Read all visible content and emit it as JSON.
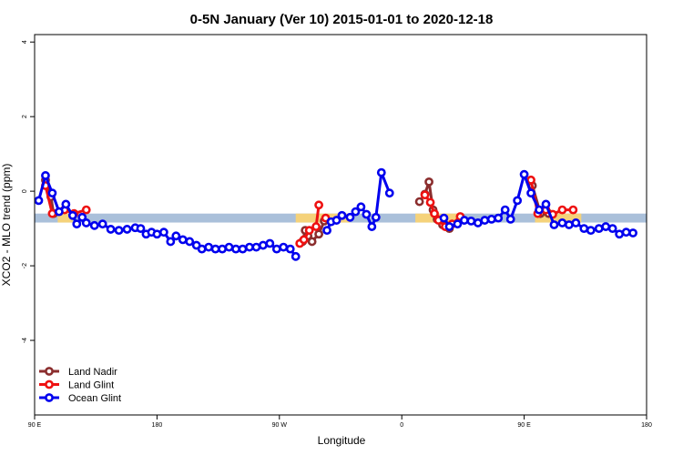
{
  "chart_data": {
    "type": "line",
    "title": "0-5N January (Ver 10)   2015-01-01 to 2020-12-18",
    "xlabel": "Longitude",
    "ylabel": "XCO2 - MLO trend (ppm)",
    "xlim": [
      0,
      450
    ],
    "ylim": [
      -6,
      4.2
    ],
    "x_ticks": [
      {
        "value": 0,
        "label": "90 E"
      },
      {
        "value": 90,
        "label": "180"
      },
      {
        "value": 180,
        "label": "90 W"
      },
      {
        "value": 270,
        "label": "0"
      },
      {
        "value": 360,
        "label": "90 E"
      },
      {
        "value": 450,
        "label": "180"
      }
    ],
    "y_ticks": [
      {
        "value": 4,
        "label": "4"
      },
      {
        "value": 2,
        "label": "2"
      },
      {
        "value": 0,
        "label": "0"
      },
      {
        "value": -2,
        "label": "-2"
      },
      {
        "value": -4,
        "label": "-4"
      }
    ],
    "background_band": {
      "y_center": -0.72,
      "y_half_width": 0.12,
      "base_color": "#aac0da",
      "land_color": "#f5d27a",
      "land_segments": [
        [
          17,
          28
        ],
        [
          192,
          232
        ],
        [
          280,
          315
        ],
        [
          368,
          380
        ],
        [
          380,
          402
        ]
      ]
    },
    "legend": {
      "position": "bottom-left",
      "entries": [
        {
          "name": "Land Nadir",
          "color": "#8b2e2e"
        },
        {
          "name": "Land Glint",
          "color": "#ee1111"
        },
        {
          "name": "Ocean Glint",
          "color": "#0000ee"
        }
      ]
    },
    "series": [
      {
        "name": "Land Nadir",
        "color": "#8b2e2e",
        "segments": [
          [
            [
              8,
              0.3
            ],
            [
              12,
              -0.15
            ],
            [
              14,
              -0.6
            ]
          ],
          [
            [
              197,
              -1.35
            ],
            [
              199,
              -1.05
            ],
            [
              201,
              -1.2
            ],
            [
              204,
              -1.35
            ],
            [
              209,
              -1.15
            ],
            [
              213,
              -0.8
            ]
          ],
          [
            [
              283,
              -0.28
            ],
            [
              287,
              -0.08
            ],
            [
              290,
              0.25
            ],
            [
              293,
              -0.5
            ],
            [
              296,
              -0.75
            ],
            [
              300,
              -0.9
            ],
            [
              305,
              -1.0
            ]
          ],
          [
            [
              366,
              0.15
            ],
            [
              372,
              -0.6
            ],
            [
              378,
              -0.6
            ]
          ]
        ]
      },
      {
        "name": "Land Glint",
        "color": "#ee1111",
        "segments": [
          [
            [
              8,
              0.15
            ],
            [
              13,
              -0.6
            ],
            [
              22,
              -0.5
            ],
            [
              29,
              -0.6
            ],
            [
              38,
              -0.5
            ]
          ],
          [
            [
              195,
              -1.4
            ],
            [
              198,
              -1.3
            ],
            [
              202,
              -1.05
            ],
            [
              207,
              -0.95
            ],
            [
              209,
              -0.37
            ]
          ],
          [
            [
              214,
              -0.72
            ]
          ],
          [
            [
              287,
              -0.1
            ],
            [
              291,
              -0.3
            ],
            [
              294,
              -0.6
            ],
            [
              297,
              -0.78
            ],
            [
              302,
              -0.95
            ],
            [
              307,
              -0.88
            ],
            [
              313,
              -0.68
            ]
          ],
          [
            [
              365,
              0.3
            ],
            [
              370,
              -0.6
            ],
            [
              376,
              -0.5
            ],
            [
              381,
              -0.62
            ],
            [
              388,
              -0.5
            ],
            [
              396,
              -0.5
            ]
          ]
        ]
      },
      {
        "name": "Ocean Glint",
        "color": "#0000ee",
        "segments": [
          [
            [
              3,
              -0.25
            ],
            [
              8,
              0.42
            ],
            [
              13,
              -0.05
            ],
            [
              18,
              -0.55
            ],
            [
              23,
              -0.35
            ],
            [
              28,
              -0.65
            ],
            [
              31,
              -0.88
            ],
            [
              35,
              -0.7
            ],
            [
              38,
              -0.85
            ],
            [
              44,
              -0.92
            ],
            [
              50,
              -0.88
            ],
            [
              56,
              -1.02
            ],
            [
              62,
              -1.05
            ],
            [
              68,
              -1.02
            ],
            [
              74,
              -0.98
            ],
            [
              78,
              -1.0
            ],
            [
              82,
              -1.15
            ],
            [
              86,
              -1.1
            ],
            [
              90,
              -1.15
            ],
            [
              95,
              -1.1
            ],
            [
              100,
              -1.35
            ],
            [
              104,
              -1.2
            ],
            [
              109,
              -1.3
            ],
            [
              114,
              -1.35
            ],
            [
              119,
              -1.45
            ],
            [
              123,
              -1.55
            ],
            [
              128,
              -1.5
            ],
            [
              133,
              -1.55
            ],
            [
              138,
              -1.55
            ],
            [
              143,
              -1.5
            ],
            [
              148,
              -1.55
            ],
            [
              153,
              -1.55
            ],
            [
              158,
              -1.5
            ],
            [
              163,
              -1.5
            ],
            [
              168,
              -1.45
            ],
            [
              173,
              -1.4
            ],
            [
              178,
              -1.55
            ],
            [
              183,
              -1.5
            ],
            [
              188,
              -1.55
            ],
            [
              192,
              -1.75
            ]
          ],
          [
            [
              215,
              -1.05
            ],
            [
              218,
              -0.82
            ],
            [
              222,
              -0.78
            ],
            [
              226,
              -0.65
            ],
            [
              232,
              -0.7
            ],
            [
              236,
              -0.55
            ],
            [
              240,
              -0.42
            ],
            [
              244,
              -0.62
            ],
            [
              248,
              -0.95
            ],
            [
              251,
              -0.7
            ],
            [
              255,
              0.5
            ],
            [
              261,
              -0.05
            ]
          ],
          [
            [
              301,
              -0.72
            ],
            [
              305,
              -0.95
            ],
            [
              311,
              -0.88
            ],
            [
              316,
              -0.78
            ],
            [
              321,
              -0.8
            ],
            [
              326,
              -0.85
            ],
            [
              331,
              -0.78
            ],
            [
              336,
              -0.75
            ],
            [
              341,
              -0.72
            ],
            [
              346,
              -0.5
            ],
            [
              350,
              -0.75
            ],
            [
              355,
              -0.25
            ],
            [
              360,
              0.45
            ],
            [
              365,
              -0.05
            ],
            [
              371,
              -0.5
            ],
            [
              376,
              -0.35
            ],
            [
              382,
              -0.9
            ],
            [
              388,
              -0.85
            ],
            [
              393,
              -0.9
            ],
            [
              398,
              -0.85
            ],
            [
              404,
              -1.0
            ],
            [
              409,
              -1.05
            ],
            [
              415,
              -1.0
            ],
            [
              420,
              -0.95
            ],
            [
              425,
              -1.0
            ],
            [
              430,
              -1.15
            ],
            [
              435,
              -1.1
            ],
            [
              440,
              -1.12
            ]
          ]
        ]
      }
    ]
  }
}
